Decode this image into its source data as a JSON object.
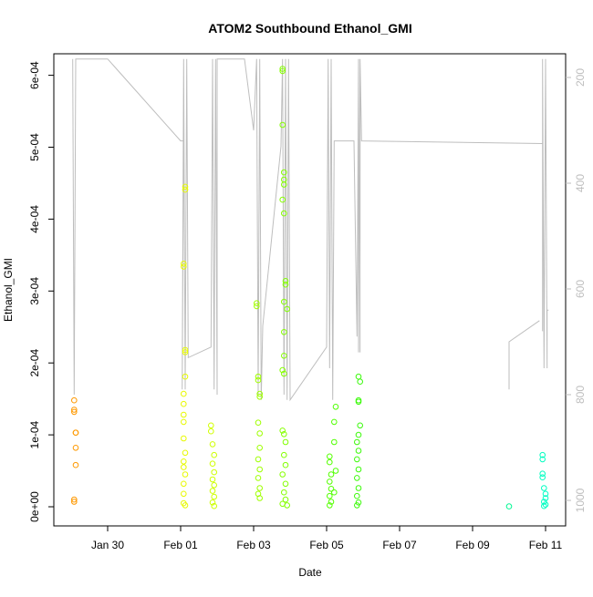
{
  "chart_data": {
    "type": "scatter",
    "title": "ATOM2 Southbound Ethanol_GMI",
    "xlabel": "Date",
    "ylabel": "Ethanol_GMI",
    "x_ticks": [
      "Jan 30",
      "Feb 01",
      "Feb 03",
      "Feb 05",
      "Feb 07",
      "Feb 09",
      "Feb 11"
    ],
    "y_ticks": [
      "0e+00",
      "1e-04",
      "2e-04",
      "3e-04",
      "4e-04",
      "5e-04",
      "6e-04"
    ],
    "y2_ticks": [
      "200",
      "400",
      "600",
      "800",
      "1000"
    ],
    "ylim": [
      0,
      0.00063
    ],
    "y2lim": [
      1020,
      165
    ],
    "grid": false,
    "colors": {
      "axis": "#000000",
      "right_axis": "#bebebe",
      "line": "#bebebe",
      "marker_start": "#ff9500",
      "marker_end": "#00ffc8"
    },
    "marker": "open-circle",
    "series": [
      {
        "name": "Ethanol_GMI",
        "axis": "left",
        "points": [
          {
            "x": "2016-01-29 02:00",
            "y": 0.000148
          },
          {
            "x": "2016-01-29 02:00",
            "y": 0.000135
          },
          {
            "x": "2016-01-29 02:00",
            "y": 0.000132
          },
          {
            "x": "2016-01-29 03:00",
            "y": 0.000103
          },
          {
            "x": "2016-01-29 03:00",
            "y": 0.000103
          },
          {
            "x": "2016-01-29 03:00",
            "y": 8.2e-05
          },
          {
            "x": "2016-01-29 03:00",
            "y": 5.8e-05
          },
          {
            "x": "2016-01-29 02:00",
            "y": 1e-05
          },
          {
            "x": "2016-01-29 02:00",
            "y": 7e-06
          },
          {
            "x": "2016-02-01 03:00",
            "y": 0.000445
          },
          {
            "x": "2016-02-01 03:00",
            "y": 0.000441
          },
          {
            "x": "2016-02-01 02:00",
            "y": 0.000338
          },
          {
            "x": "2016-02-01 02:00",
            "y": 0.000334
          },
          {
            "x": "2016-02-01 03:00",
            "y": 0.000218
          },
          {
            "x": "2016-02-01 03:00",
            "y": 0.000215
          },
          {
            "x": "2016-02-01 03:00",
            "y": 0.000181
          },
          {
            "x": "2016-02-01 02:00",
            "y": 0.000157
          },
          {
            "x": "2016-02-01 02:00",
            "y": 0.000143
          },
          {
            "x": "2016-02-01 02:00",
            "y": 0.000128
          },
          {
            "x": "2016-02-01 02:00",
            "y": 0.000118
          },
          {
            "x": "2016-02-01 02:00",
            "y": 9.5e-05
          },
          {
            "x": "2016-02-01 03:00",
            "y": 7.5e-05
          },
          {
            "x": "2016-02-01 02:00",
            "y": 6.3e-05
          },
          {
            "x": "2016-02-01 02:00",
            "y": 5.5e-05
          },
          {
            "x": "2016-02-01 03:00",
            "y": 4.5e-05
          },
          {
            "x": "2016-02-01 02:00",
            "y": 3.2e-05
          },
          {
            "x": "2016-02-01 02:00",
            "y": 1.8e-05
          },
          {
            "x": "2016-02-01 02:00",
            "y": 5e-06
          },
          {
            "x": "2016-02-01 03:00",
            "y": 2e-06
          },
          {
            "x": "2016-02-01 20:00",
            "y": 0.000113
          },
          {
            "x": "2016-02-01 20:00",
            "y": 0.000105
          },
          {
            "x": "2016-02-01 21:00",
            "y": 8.7e-05
          },
          {
            "x": "2016-02-01 22:00",
            "y": 7.2e-05
          },
          {
            "x": "2016-02-01 21:00",
            "y": 6e-05
          },
          {
            "x": "2016-02-01 22:00",
            "y": 4.8e-05
          },
          {
            "x": "2016-02-01 21:00",
            "y": 3.8e-05
          },
          {
            "x": "2016-02-01 22:00",
            "y": 3e-05
          },
          {
            "x": "2016-02-01 21:00",
            "y": 2.2e-05
          },
          {
            "x": "2016-02-01 22:00",
            "y": 1.4e-05
          },
          {
            "x": "2016-02-01 21:00",
            "y": 6e-06
          },
          {
            "x": "2016-02-01 22:00",
            "y": 1e-06
          },
          {
            "x": "2016-02-03 02:00",
            "y": 0.000283
          },
          {
            "x": "2016-02-03 02:00",
            "y": 0.000279
          },
          {
            "x": "2016-02-03 03:00",
            "y": 0.000181
          },
          {
            "x": "2016-02-03 03:00",
            "y": 0.000176
          },
          {
            "x": "2016-02-03 04:00",
            "y": 0.000157
          },
          {
            "x": "2016-02-03 04:00",
            "y": 0.000153
          },
          {
            "x": "2016-02-03 03:00",
            "y": 0.000117
          },
          {
            "x": "2016-02-03 04:00",
            "y": 0.000102
          },
          {
            "x": "2016-02-03 04:00",
            "y": 8.2e-05
          },
          {
            "x": "2016-02-03 03:00",
            "y": 6.6e-05
          },
          {
            "x": "2016-02-03 04:00",
            "y": 5.2e-05
          },
          {
            "x": "2016-02-03 03:00",
            "y": 4e-05
          },
          {
            "x": "2016-02-03 04:00",
            "y": 2.6e-05
          },
          {
            "x": "2016-02-03 03:00",
            "y": 1.8e-05
          },
          {
            "x": "2016-02-03 04:00",
            "y": 1.2e-05
          },
          {
            "x": "2016-02-03 19:00",
            "y": 0.000609
          },
          {
            "x": "2016-02-03 19:00",
            "y": 0.000606
          },
          {
            "x": "2016-02-03 19:00",
            "y": 0.000531
          },
          {
            "x": "2016-02-03 20:00",
            "y": 0.000465
          },
          {
            "x": "2016-02-03 20:00",
            "y": 0.000455
          },
          {
            "x": "2016-02-03 20:00",
            "y": 0.000448
          },
          {
            "x": "2016-02-03 19:00",
            "y": 0.000427
          },
          {
            "x": "2016-02-03 20:00",
            "y": 0.000408
          },
          {
            "x": "2016-02-03 21:00",
            "y": 0.000314
          },
          {
            "x": "2016-02-03 21:00",
            "y": 0.000309
          },
          {
            "x": "2016-02-03 20:00",
            "y": 0.000285
          },
          {
            "x": "2016-02-03 22:00",
            "y": 0.000275
          },
          {
            "x": "2016-02-03 20:00",
            "y": 0.000243
          },
          {
            "x": "2016-02-03 20:00",
            "y": 0.00021
          },
          {
            "x": "2016-02-03 19:00",
            "y": 0.00019
          },
          {
            "x": "2016-02-03 20:00",
            "y": 0.000185
          },
          {
            "x": "2016-02-03 19:00",
            "y": 0.000106
          },
          {
            "x": "2016-02-03 20:00",
            "y": 0.000101
          },
          {
            "x": "2016-02-03 21:00",
            "y": 9e-05
          },
          {
            "x": "2016-02-03 20:00",
            "y": 7.2e-05
          },
          {
            "x": "2016-02-03 21:00",
            "y": 5.8e-05
          },
          {
            "x": "2016-02-03 19:00",
            "y": 4.5e-05
          },
          {
            "x": "2016-02-03 21:00",
            "y": 3.2e-05
          },
          {
            "x": "2016-02-03 20:00",
            "y": 2e-05
          },
          {
            "x": "2016-02-03 21:00",
            "y": 1e-05
          },
          {
            "x": "2016-02-03 19:00",
            "y": 4e-06
          },
          {
            "x": "2016-02-03 22:00",
            "y": 2e-06
          },
          {
            "x": "2016-02-05 02:00",
            "y": 7e-05
          },
          {
            "x": "2016-02-05 02:00",
            "y": 6.2e-05
          },
          {
            "x": "2016-02-05 03:00",
            "y": 4.5e-05
          },
          {
            "x": "2016-02-05 02:00",
            "y": 3.5e-05
          },
          {
            "x": "2016-02-05 03:00",
            "y": 2.5e-05
          },
          {
            "x": "2016-02-05 02:00",
            "y": 1.5e-05
          },
          {
            "x": "2016-02-05 03:00",
            "y": 7e-06
          },
          {
            "x": "2016-02-05 02:00",
            "y": 2e-06
          },
          {
            "x": "2016-02-05 06:00",
            "y": 0.000139
          },
          {
            "x": "2016-02-05 05:00",
            "y": 0.000118
          },
          {
            "x": "2016-02-05 05:00",
            "y": 9e-05
          },
          {
            "x": "2016-02-05 06:00",
            "y": 5e-05
          },
          {
            "x": "2016-02-05 05:00",
            "y": 2e-05
          },
          {
            "x": "2016-02-05 21:00",
            "y": 0.000181
          },
          {
            "x": "2016-02-05 22:00",
            "y": 0.000174
          },
          {
            "x": "2016-02-05 21:00",
            "y": 0.000148
          },
          {
            "x": "2016-02-05 21:00",
            "y": 0.000146
          },
          {
            "x": "2016-02-05 22:00",
            "y": 0.000113
          },
          {
            "x": "2016-02-05 21:00",
            "y": 0.0001
          },
          {
            "x": "2016-02-05 20:00",
            "y": 9e-05
          },
          {
            "x": "2016-02-05 21:00",
            "y": 7.8e-05
          },
          {
            "x": "2016-02-05 20:00",
            "y": 6.6e-05
          },
          {
            "x": "2016-02-05 21:00",
            "y": 5.2e-05
          },
          {
            "x": "2016-02-05 20:00",
            "y": 4e-05
          },
          {
            "x": "2016-02-05 21:00",
            "y": 2.6e-05
          },
          {
            "x": "2016-02-05 20:00",
            "y": 1.5e-05
          },
          {
            "x": "2016-02-05 21:00",
            "y": 6e-06
          },
          {
            "x": "2016-02-05 20:00",
            "y": 2e-06
          },
          {
            "x": "2016-02-10 00:00",
            "y": 5e-07
          },
          {
            "x": "2016-02-10 22:00",
            "y": 7.2e-05
          },
          {
            "x": "2016-02-10 22:00",
            "y": 6.6e-05
          },
          {
            "x": "2016-02-10 22:00",
            "y": 4.6e-05
          },
          {
            "x": "2016-02-10 22:00",
            "y": 4.1e-05
          },
          {
            "x": "2016-02-10 23:00",
            "y": 2.6e-05
          },
          {
            "x": "2016-02-11 00:00",
            "y": 1.8e-05
          },
          {
            "x": "2016-02-11 00:00",
            "y": 1.2e-05
          },
          {
            "x": "2016-02-10 23:00",
            "y": 7e-06
          },
          {
            "x": "2016-02-11 00:00",
            "y": 3e-06
          },
          {
            "x": "2016-02-10 23:00",
            "y": 1e-06
          }
        ]
      },
      {
        "axis": "right",
        "points": [
          {
            "x": "2016-01-29 01:00",
            "y": 165
          },
          {
            "x": "2016-01-29 02:00",
            "y": 800
          },
          {
            "x": "2016-01-29 03:00",
            "y": 165
          },
          {
            "x": "2016-01-30 00:00",
            "y": 165
          },
          {
            "x": "2016-02-01 00:00",
            "y": 320
          },
          {
            "x": "2016-02-01 02:00",
            "y": 320
          },
          {
            "x": "2016-02-01 01:00",
            "y": 790
          },
          {
            "x": "2016-02-01 02:00",
            "y": 165
          },
          {
            "x": "2016-02-01 03:00",
            "y": 790
          },
          {
            "x": "2016-02-01 04:00",
            "y": 165
          },
          {
            "x": "2016-02-01 05:00",
            "y": 730
          },
          {
            "x": "2016-02-01 20:00",
            "y": 710
          },
          {
            "x": "2016-02-01 21:00",
            "y": 165
          },
          {
            "x": "2016-02-01 22:00",
            "y": 790
          },
          {
            "x": "2016-02-01 23:00",
            "y": 165
          },
          {
            "x": "2016-02-02 00:00",
            "y": 800
          },
          {
            "x": "2016-02-02 00:00",
            "y": 165
          },
          {
            "x": "2016-02-02 18:00",
            "y": 165
          },
          {
            "x": "2016-02-03 00:00",
            "y": 300
          },
          {
            "x": "2016-02-03 02:00",
            "y": 165
          },
          {
            "x": "2016-02-03 03:00",
            "y": 800
          },
          {
            "x": "2016-02-03 04:00",
            "y": 165
          },
          {
            "x": "2016-02-03 05:00",
            "y": 810
          },
          {
            "x": "2016-02-03 06:00",
            "y": 670
          },
          {
            "x": "2016-02-03 18:00",
            "y": 330
          },
          {
            "x": "2016-02-03 19:00",
            "y": 165
          },
          {
            "x": "2016-02-03 20:00",
            "y": 800
          },
          {
            "x": "2016-02-03 21:00",
            "y": 165
          },
          {
            "x": "2016-02-03 22:00",
            "y": 810
          },
          {
            "x": "2016-02-03 23:00",
            "y": 165
          },
          {
            "x": "2016-02-04 00:00",
            "y": 810
          },
          {
            "x": "2016-02-05 00:00",
            "y": 710
          },
          {
            "x": "2016-02-05 01:00",
            "y": 165
          },
          {
            "x": "2016-02-05 02:00",
            "y": 750
          },
          {
            "x": "2016-02-05 03:00",
            "y": 165
          },
          {
            "x": "2016-02-05 04:00",
            "y": 810
          },
          {
            "x": "2016-02-05 05:00",
            "y": 320
          },
          {
            "x": "2016-02-05 18:00",
            "y": 320
          },
          {
            "x": "2016-02-05 20:00",
            "y": 690
          },
          {
            "x": "2016-02-05 21:00",
            "y": 165
          },
          {
            "x": "2016-02-05 21:00",
            "y": 720
          },
          {
            "x": "2016-02-05 22:00",
            "y": 165
          },
          {
            "x": "2016-02-05 22:00",
            "y": 720
          },
          {
            "x": "2016-02-05 22:00",
            "y": 165
          },
          {
            "x": "2016-02-05 23:00",
            "y": 320
          },
          {
            "x": "2016-02-10 22:00",
            "y": 325
          },
          {
            "x": "2016-02-10 22:00",
            "y": 680
          },
          {
            "x": "2016-02-10 22:00",
            "y": 165
          },
          {
            "x": "2016-02-10 23:00",
            "y": 750
          },
          {
            "x": "2016-02-11 00:00",
            "y": 165
          },
          {
            "x": "2016-02-11 01:00",
            "y": 750
          },
          {
            "x": "2016-02-11 01:00",
            "y": 640
          },
          {
            "x": "2016-02-11 02:00",
            "y": 640
          }
        ]
      },
      {
        "axis": "right",
        "points": [
          {
            "x": "2016-02-10 00:00",
            "y": 790
          },
          {
            "x": "2016-02-10 00:00",
            "y": 700
          },
          {
            "x": "2016-02-10 20:00",
            "y": 660
          }
        ]
      }
    ]
  }
}
